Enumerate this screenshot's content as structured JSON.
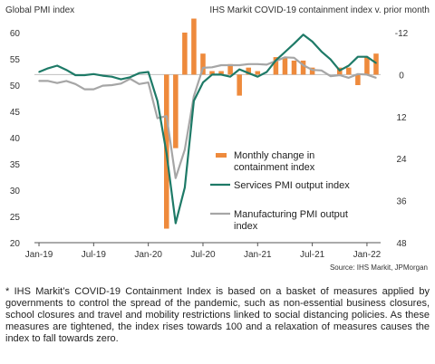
{
  "chart_data": {
    "type": "line",
    "title_left": "Global PMI index",
    "title_right": "IHS Markit COVID-19 containment index v. prior month",
    "source": "Source: IHS Markit, JPMorgan",
    "ylim_left": [
      20,
      60
    ],
    "ylim_right_inverted": [
      -12,
      48
    ],
    "yticks_left": [
      "20",
      "25",
      "30",
      "35",
      "40",
      "45",
      "50",
      "55",
      "60"
    ],
    "yticks_right": [
      "-12",
      "0",
      "12",
      "24",
      "36",
      "48"
    ],
    "xticks": [
      "Jan-19",
      "Jul-19",
      "Jan-20",
      "Jul-20",
      "Jan-21",
      "Jul-21",
      "Jan-22"
    ],
    "legend": {
      "bars": "Monthly change in containment index",
      "services": "Services PMI output index",
      "manufacturing": "Manufacturing PMI output index"
    },
    "colors": {
      "bars": "#ee8a3c",
      "services": "#1e7a67",
      "manufacturing": "#a6a6a6",
      "reference": "#bfbfbf"
    },
    "months": [
      "2019-01",
      "2019-02",
      "2019-03",
      "2019-04",
      "2019-05",
      "2019-06",
      "2019-07",
      "2019-08",
      "2019-09",
      "2019-10",
      "2019-11",
      "2019-12",
      "2020-01",
      "2020-02",
      "2020-03",
      "2020-04",
      "2020-05",
      "2020-06",
      "2020-07",
      "2020-08",
      "2020-09",
      "2020-10",
      "2020-11",
      "2020-12",
      "2021-01",
      "2021-02",
      "2021-03",
      "2021-04",
      "2021-05",
      "2021-06",
      "2021-07",
      "2021-08",
      "2021-09",
      "2021-10",
      "2021-11",
      "2021-12",
      "2022-01",
      "2022-02"
    ],
    "series": [
      {
        "name": "Monthly change in containment index",
        "kind": "bar",
        "values": [
          0,
          0,
          0,
          0,
          0,
          0,
          0,
          0,
          0,
          0,
          0,
          0,
          0,
          0,
          44,
          21,
          -12,
          -16,
          -6,
          -1,
          -1,
          -3,
          6,
          -2,
          -1,
          0,
          -5,
          -5,
          -4,
          -4,
          -2,
          0,
          0,
          -2,
          -2,
          3,
          -5,
          -6
        ]
      },
      {
        "name": "Services PMI output index",
        "kind": "line",
        "values": [
          52.5,
          53.2,
          53.7,
          52.9,
          51.9,
          51.9,
          52.1,
          51.8,
          51.6,
          51.1,
          51.5,
          52.3,
          52.5,
          47.0,
          37.0,
          23.7,
          30.5,
          47.0,
          50.5,
          52.0,
          52.0,
          51.6,
          53.0,
          52.3,
          51.6,
          52.5,
          54.7,
          56.3,
          57.9,
          59.6,
          58.3,
          56.4,
          54.9,
          52.8,
          53.7,
          55.4,
          55.4,
          54.2
        ]
      },
      {
        "name": "Manufacturing PMI output index",
        "kind": "line",
        "values": [
          50.8,
          50.8,
          50.4,
          50.8,
          50.2,
          49.2,
          49.2,
          49.9,
          50.0,
          50.3,
          51.2,
          50.2,
          50.5,
          43.7,
          44.1,
          32.3,
          37.7,
          47.9,
          53.3,
          53.4,
          53.8,
          53.8,
          53.8,
          54.0,
          54.0,
          53.9,
          54.6,
          55.3,
          55.2,
          53.8,
          52.9,
          52.8,
          51.7,
          51.9,
          51.4,
          52.1,
          52.0,
          51.4
        ]
      }
    ]
  },
  "footnote": "* IHS Markit’s COVID-19 Containment Index is based on a basket of measures applied by governments to control the spread of the pandemic, such as non-essential business closures, school closures and travel and mobility restrictions linked to social distancing policies. As these measures are tightened, the index rises towards 100 and a relaxation of measures causes the index to fall towards zero."
}
